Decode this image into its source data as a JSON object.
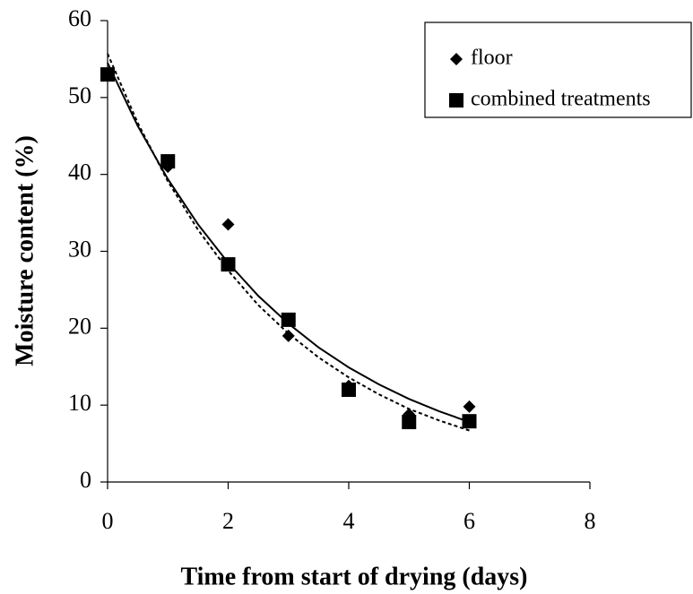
{
  "chart_data": {
    "type": "scatter",
    "x_label": "Time from start of drying (days)",
    "y_label": "Moisture content (%)",
    "xlim": [
      0,
      8
    ],
    "xticks": [
      0,
      2,
      4,
      6,
      8
    ],
    "ylim": [
      0,
      60
    ],
    "yticks": [
      0,
      10,
      20,
      30,
      40,
      50,
      60
    ],
    "legend": "top-right",
    "x": [
      0,
      1,
      2,
      3,
      4,
      5,
      6
    ],
    "trend_x": [
      0,
      0.5,
      1,
      1.5,
      2,
      2.5,
      3,
      3.5,
      4,
      4.5,
      5,
      5.5,
      6
    ],
    "series": [
      {
        "name": "floor",
        "color": "#000000",
        "marker": "diamond",
        "values": [
          53,
          41,
          33.5,
          19,
          12.5,
          8.8,
          9.8
        ],
        "trend_style": "solid",
        "trend": [
          54.5,
          46.3,
          39.4,
          33.5,
          28.5,
          24.2,
          20.6,
          17.5,
          14.9,
          12.7,
          10.8,
          9.2,
          7.8
        ]
      },
      {
        "name": "combined treatments",
        "color": "#000000",
        "marker": "square",
        "values": [
          53,
          41.7,
          28.3,
          21.1,
          12,
          7.8,
          7.9
        ],
        "trend_style": "dotted",
        "trend": [
          55.7,
          46.7,
          39.1,
          32.8,
          27.5,
          23.0,
          19.3,
          16.2,
          13.6,
          11.4,
          9.5,
          8.0,
          6.7
        ]
      }
    ]
  }
}
